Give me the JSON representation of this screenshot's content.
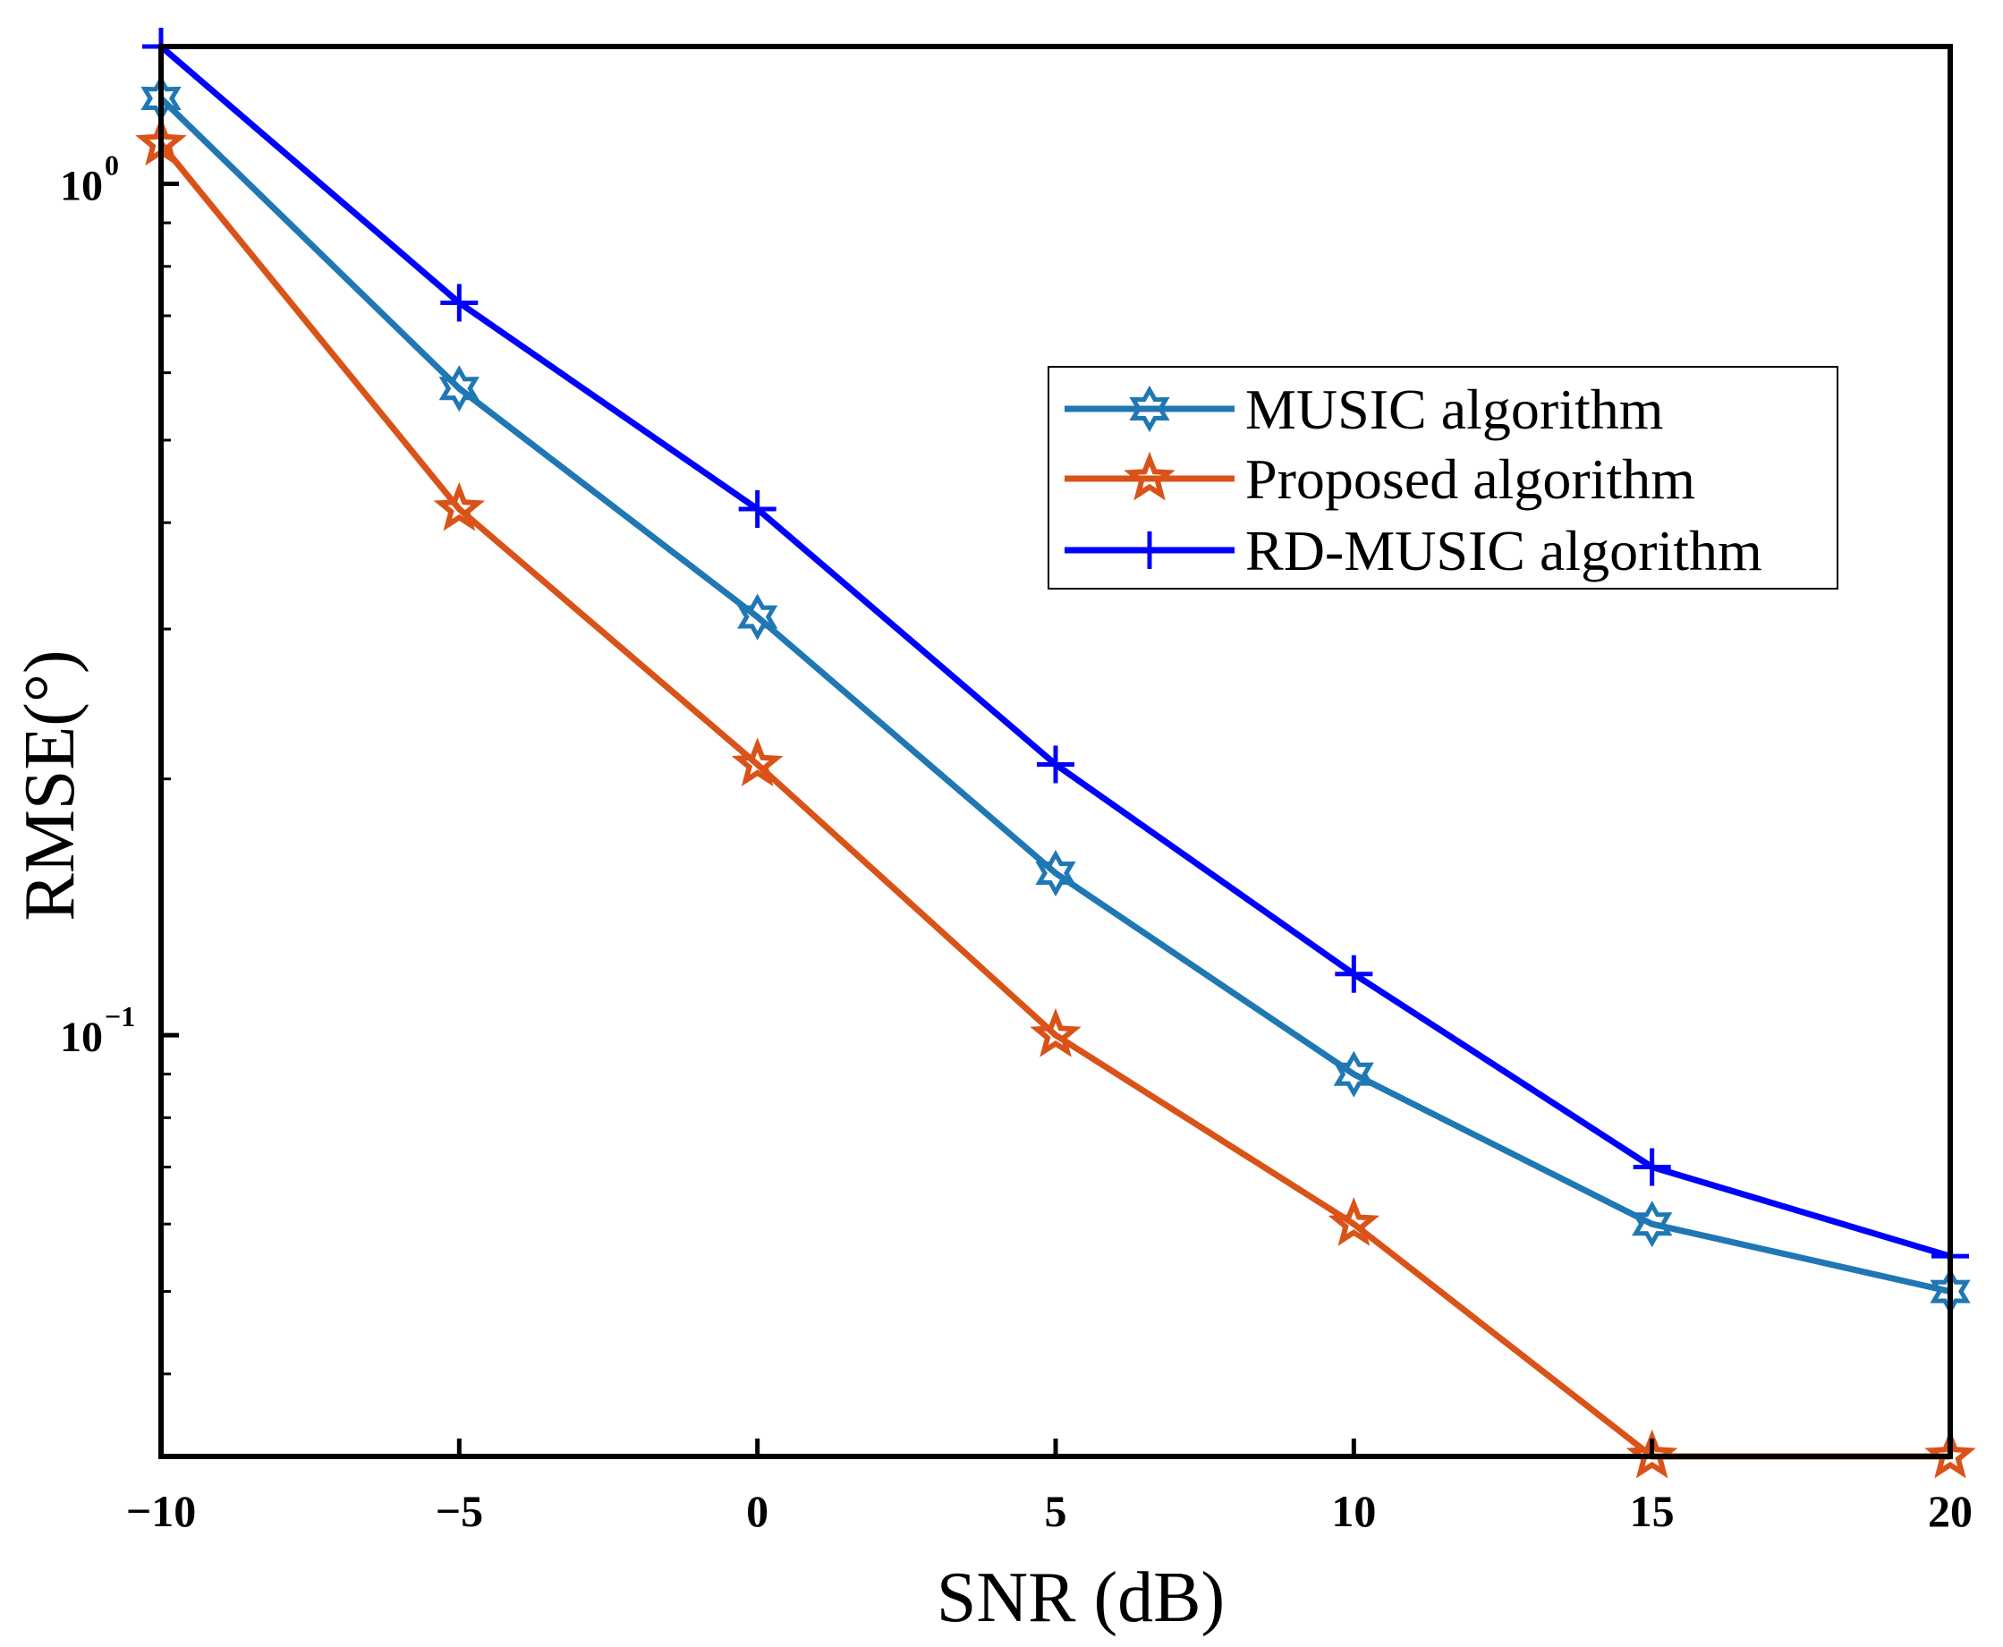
{
  "chart_data": {
    "type": "line",
    "title": "",
    "xlabel": "SNR (dB)",
    "ylabel": "RMSE(°)",
    "x": [
      -10,
      -5,
      0,
      5,
      10,
      15,
      20
    ],
    "xlim": [
      -10,
      20
    ],
    "ylim": [
      0.032,
      1.45
    ],
    "yscale": "log",
    "xticks": [
      {
        "value": -10,
        "label": "−10"
      },
      {
        "value": -5,
        "label": "−5"
      },
      {
        "value": 0,
        "label": "0"
      },
      {
        "value": 5,
        "label": "5"
      },
      {
        "value": 10,
        "label": "10"
      },
      {
        "value": 15,
        "label": "15"
      },
      {
        "value": 20,
        "label": "20"
      }
    ],
    "yticks": [
      {
        "value": 1,
        "base": "10",
        "exp": "0"
      },
      {
        "value": 0.1,
        "base": "10",
        "exp": "−1"
      }
    ],
    "grid": false,
    "legend_position": "upper-right",
    "series": [
      {
        "name": "MUSIC algorithm",
        "color": "#1f77b4",
        "marker": "hexagram",
        "values": [
          1.26,
          0.575,
          0.31,
          0.155,
          0.09,
          0.06,
          0.05
        ]
      },
      {
        "name": "Proposed algorithm",
        "color": "#d95319",
        "marker": "pentagram",
        "values": [
          1.115,
          0.415,
          0.208,
          0.1,
          0.06,
          0.032,
          0.032
        ]
      },
      {
        "name": "RD-MUSIC algorithm",
        "color": "#0000ff",
        "marker": "plus",
        "values": [
          1.45,
          0.725,
          0.415,
          0.208,
          0.118,
          0.07,
          0.055
        ]
      }
    ]
  }
}
